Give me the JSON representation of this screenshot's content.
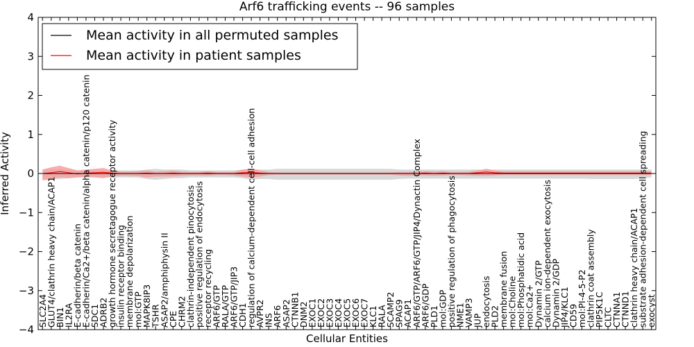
{
  "chart_data": {
    "type": "line",
    "title": "Arf6 trafficking events -- 96 samples",
    "xlabel": "Cellular Entities",
    "ylabel": "Inferred Activity",
    "ylim": [
      -4,
      4
    ],
    "yticks": [
      "4",
      "3",
      "2",
      "1",
      "0",
      "−1",
      "−2",
      "−3",
      "−4"
    ],
    "grid": false,
    "legend_position": "top-left",
    "categories": [
      "SLC2A4",
      "GLUT4/clathrin heavy chain/ACAP1",
      "BIN1",
      "IL2RA",
      "E-cadherin/beta catenin",
      "E-cadherin/Ca2+/beta catenin/alpha catenin/p120 catenin",
      "SDC1",
      "ADRB2",
      "growth hormone secretagogue receptor activity",
      "insulin receptor binding",
      "membrane depolarization",
      "mol:GTP",
      "MAPK8IP3",
      "TSHR",
      "ASAP2/amphiphysin II",
      "CPE",
      "CHRM2",
      "clathrin-independent pinocytosis",
      "positive regulation of endocytosis",
      "receptor recycling",
      "ARF6/GTP",
      "RALA/GTP",
      "ARF6/GTP/JIP3",
      "CDH1",
      "regulation of calcium-dependent cell-cell adhesion",
      "AVPR2",
      "INS",
      "ARF6",
      "ASAP2",
      "CTNNB1",
      "DNM2",
      "EXOC1",
      "EXOC2",
      "EXOC3",
      "EXOC4",
      "EXOC5",
      "EXOC6",
      "EXOC7",
      "KLC1",
      "RALA",
      "SCAMP2",
      "SPAG9",
      "ACAP1",
      "ARF6/GTP/ARF6/GTP/JIP4/Dynactin Complex",
      "ARF6/GDP",
      "PLD1",
      "mol:GDP",
      "positive regulation of phagocytosis",
      "NME1",
      "VAMP3",
      "JUP",
      "endocytosis",
      "PLD2",
      "membrane fusion",
      "mol:Choline",
      "mol:Phosphatidic acid",
      "mol:Ca2+",
      "Dynamin 2/GTP",
      "calcium ion-dependent exocytosis",
      "Dynamin 2/GDP",
      "JIP4/KLC1",
      "CD59",
      "mol:PI-4-5-P2",
      "clathrin coat assembly",
      "PIP5K1C",
      "CLTC",
      "CTNNA1",
      "CTNND1",
      "clathrin heavy chain/ACAP1",
      "substrate adhesion-dependent cell spreading",
      "exocyst"
    ],
    "series": [
      {
        "name": "Mean activity in all permuted samples",
        "color": "#000000",
        "values": [
          0,
          0,
          0,
          0,
          0,
          0,
          0,
          0,
          0,
          0,
          0,
          0,
          0,
          0,
          0,
          0,
          0,
          0,
          0,
          0,
          0,
          0,
          0,
          0,
          0,
          0,
          0,
          0,
          0,
          0,
          0,
          0,
          0,
          0,
          0,
          0,
          0,
          0,
          0,
          0,
          0,
          0,
          0,
          0,
          0,
          0,
          0,
          0,
          0,
          0,
          0,
          0,
          0,
          0,
          0,
          0,
          0,
          0,
          0,
          0,
          0,
          0,
          0,
          0,
          0,
          0,
          0,
          0,
          0,
          0,
          0
        ],
        "band_color": "#d8d8d8",
        "band_upper": [
          0.1,
          0.12,
          0.12,
          0.1,
          0.08,
          0.08,
          0.08,
          0.08,
          0.08,
          0.08,
          0.08,
          0.08,
          0.1,
          0.12,
          0.1,
          0.1,
          0.1,
          0.08,
          0.08,
          0.08,
          0.08,
          0.08,
          0.08,
          0.1,
          0.12,
          0.1,
          0.1,
          0.12,
          0.12,
          0.12,
          0.12,
          0.12,
          0.12,
          0.12,
          0.12,
          0.12,
          0.12,
          0.12,
          0.12,
          0.12,
          0.12,
          0.1,
          0.1,
          0.1,
          0.1,
          0.1,
          0.1,
          0.1,
          0.1,
          0.1,
          0.1,
          0.1,
          0.1,
          0.1,
          0.1,
          0.1,
          0.1,
          0.1,
          0.1,
          0.1,
          0.1,
          0.1,
          0.1,
          0.1,
          0.1,
          0.1,
          0.1,
          0.1,
          0.1,
          0.1,
          0.1
        ],
        "band_lower": [
          -0.12,
          -0.14,
          -0.14,
          -0.12,
          -0.1,
          -0.1,
          -0.1,
          -0.1,
          -0.1,
          -0.1,
          -0.1,
          -0.1,
          -0.14,
          -0.16,
          -0.14,
          -0.12,
          -0.12,
          -0.1,
          -0.1,
          -0.1,
          -0.1,
          -0.1,
          -0.1,
          -0.12,
          -0.16,
          -0.14,
          -0.14,
          -0.16,
          -0.16,
          -0.16,
          -0.16,
          -0.16,
          -0.16,
          -0.16,
          -0.16,
          -0.16,
          -0.16,
          -0.16,
          -0.16,
          -0.16,
          -0.16,
          -0.14,
          -0.13,
          -0.13,
          -0.13,
          -0.13,
          -0.13,
          -0.13,
          -0.13,
          -0.13,
          -0.13,
          -0.13,
          -0.13,
          -0.13,
          -0.13,
          -0.13,
          -0.13,
          -0.13,
          -0.13,
          -0.13,
          -0.13,
          -0.13,
          -0.13,
          -0.14,
          -0.14,
          -0.14,
          -0.14,
          -0.14,
          -0.14,
          -0.12,
          -0.1
        ]
      },
      {
        "name": "Mean activity in patient samples",
        "color": "#ff0000",
        "values": [
          0.0,
          0.02,
          0.05,
          0.02,
          -0.01,
          0.01,
          0.02,
          0.03,
          0.01,
          0.0,
          0.0,
          0.0,
          0.01,
          0.0,
          0.0,
          0.01,
          0.0,
          0.0,
          0.0,
          0.01,
          0.0,
          0.0,
          0.0,
          0.02,
          0.03,
          0.01,
          0.0,
          0.0,
          0.0,
          0.0,
          0.0,
          0.0,
          0.0,
          0.0,
          0.0,
          0.0,
          0.0,
          0.0,
          0.0,
          0.0,
          0.0,
          0.0,
          0.0,
          0.0,
          0.01,
          0.0,
          0.01,
          0.0,
          0.0,
          0.0,
          0.02,
          0.04,
          0.02,
          0.01,
          0.01,
          0.01,
          0.01,
          0.01,
          0.01,
          0.01,
          0.01,
          0.01,
          0.01,
          0.01,
          0.01,
          0.01,
          0.01,
          0.01,
          0.01,
          0.01,
          0.01
        ],
        "band_color": "#f4a0a0",
        "band_upper": [
          0.1,
          0.16,
          0.2,
          0.14,
          0.08,
          0.1,
          0.12,
          0.14,
          0.08,
          0.05,
          0.05,
          0.06,
          0.08,
          0.05,
          0.06,
          0.08,
          0.05,
          0.04,
          0.04,
          0.06,
          0.04,
          0.04,
          0.04,
          0.1,
          0.12,
          0.08,
          0.04,
          0.03,
          0.03,
          0.03,
          0.03,
          0.03,
          0.03,
          0.03,
          0.03,
          0.03,
          0.03,
          0.03,
          0.03,
          0.03,
          0.03,
          0.04,
          0.04,
          0.05,
          0.06,
          0.05,
          0.06,
          0.04,
          0.04,
          0.05,
          0.08,
          0.12,
          0.08,
          0.06,
          0.06,
          0.06,
          0.06,
          0.06,
          0.06,
          0.06,
          0.06,
          0.06,
          0.06,
          0.06,
          0.06,
          0.06,
          0.06,
          0.06,
          0.06,
          0.06,
          0.06
        ],
        "band_lower": [
          -0.18,
          -0.14,
          -0.1,
          -0.12,
          -0.1,
          -0.08,
          -0.1,
          -0.12,
          -0.08,
          -0.06,
          -0.06,
          -0.07,
          -0.1,
          -0.08,
          -0.08,
          -0.08,
          -0.06,
          -0.05,
          -0.05,
          -0.06,
          -0.04,
          -0.04,
          -0.05,
          -0.08,
          -0.1,
          -0.08,
          -0.04,
          -0.03,
          -0.03,
          -0.03,
          -0.03,
          -0.03,
          -0.03,
          -0.03,
          -0.03,
          -0.03,
          -0.03,
          -0.03,
          -0.03,
          -0.03,
          -0.03,
          -0.05,
          -0.06,
          -0.05,
          -0.05,
          -0.06,
          -0.05,
          -0.04,
          -0.04,
          -0.05,
          -0.06,
          -0.06,
          -0.05,
          -0.04,
          -0.04,
          -0.04,
          -0.04,
          -0.04,
          -0.04,
          -0.04,
          -0.04,
          -0.04,
          -0.04,
          -0.04,
          -0.04,
          -0.04,
          -0.04,
          -0.04,
          -0.04,
          -0.04,
          -0.04
        ]
      }
    ]
  }
}
